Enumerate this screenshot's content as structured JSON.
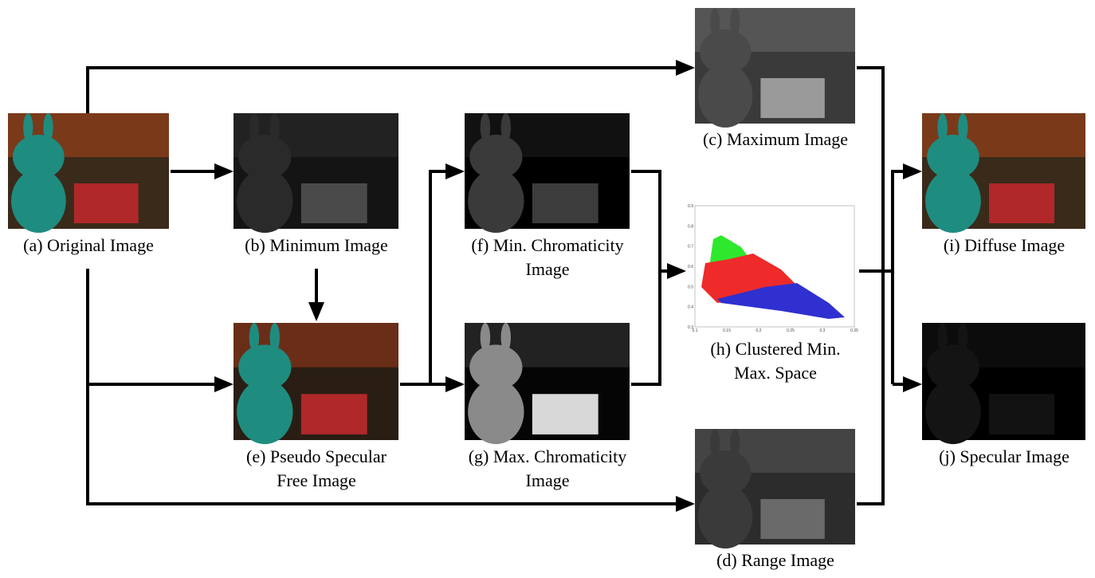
{
  "panels": [
    {
      "caption": [
        "(a) Original Image"
      ]
    },
    {
      "caption": [
        "(b) Minimum Image"
      ]
    },
    {
      "caption": [
        "(c) Maximum Image"
      ]
    },
    {
      "caption": [
        "(d) Range Image"
      ]
    },
    {
      "caption": [
        "(e) Pseudo Specular",
        "Free Image"
      ]
    },
    {
      "caption": [
        "(f) Min. Chromaticity",
        "Image"
      ]
    },
    {
      "caption": [
        "(g) Max. Chromaticity",
        "Image"
      ]
    },
    {
      "caption": [
        "(h) Clustered Min.",
        "Max. Space"
      ],
      "xticks": [
        "0.1",
        "0.15",
        "0.2",
        "0.25",
        "0.3",
        "0.35"
      ],
      "yticks": [
        "0.9",
        "0.8",
        "0.7",
        "0.6",
        "0.5",
        "0.4",
        "0.3"
      ]
    },
    {
      "caption": [
        "(i) Diffuse Image"
      ]
    },
    {
      "caption": [
        "(j) Specular Image"
      ]
    }
  ]
}
